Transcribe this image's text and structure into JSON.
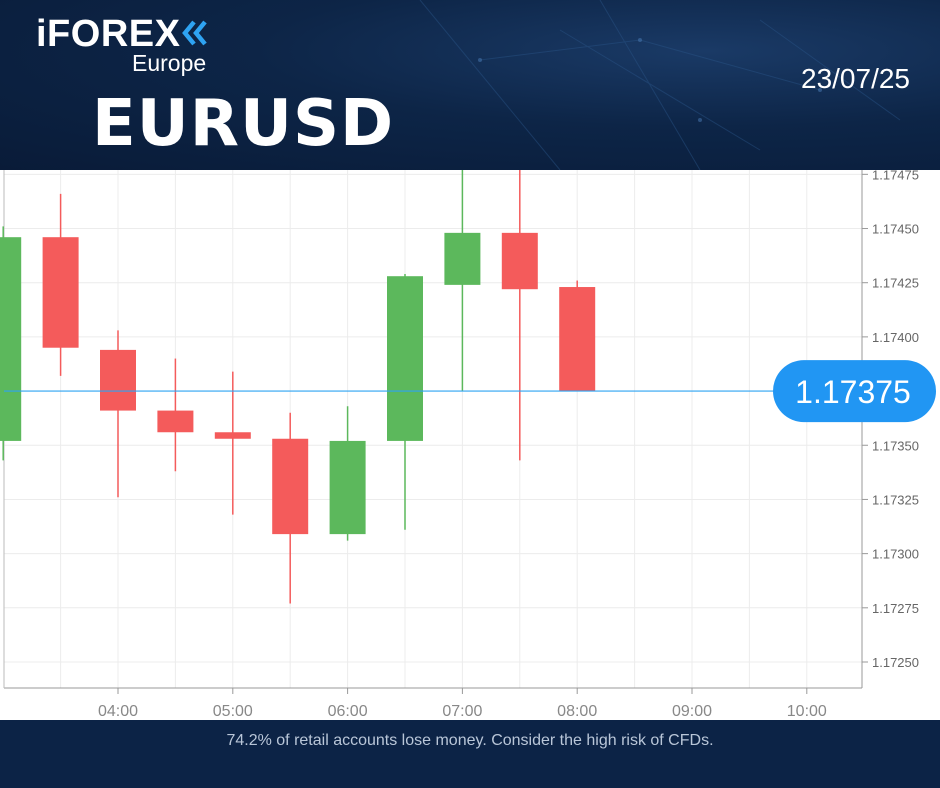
{
  "brand": {
    "name": "iFOREX",
    "region": "Europe",
    "icon": "double-chevron-left-icon",
    "accent_color": "#2ea3f2"
  },
  "symbol": "EURUSD",
  "date": "23/07/25",
  "colors": {
    "header_bg": "#0d2547",
    "up": "#5cb85c",
    "down": "#f45b5b",
    "price_line": "#2ea3f2",
    "price_badge": "#2196f3"
  },
  "chart_data": {
    "type": "candlestick",
    "x_labels": [
      "04:00",
      "05:00",
      "06:00",
      "07:00",
      "08:00",
      "09:00",
      "10:00"
    ],
    "y_ticks": [
      "1.17250",
      "1.17275",
      "1.17300",
      "1.17325",
      "1.17350",
      "1.17400",
      "1.17425",
      "1.17450",
      "1.17475"
    ],
    "ylim": [
      1.17238,
      1.17477
    ],
    "grid": true,
    "current_price": 1.17375,
    "current_price_label": "1.17375",
    "candles": [
      {
        "time": "03:00",
        "open": 1.17352,
        "high": 1.17451,
        "low": 1.17343,
        "close": 1.17446
      },
      {
        "time": "03:30",
        "open": 1.17446,
        "high": 1.17466,
        "low": 1.17382,
        "close": 1.17395
      },
      {
        "time": "04:00",
        "open": 1.17394,
        "high": 1.17403,
        "low": 1.17326,
        "close": 1.17366
      },
      {
        "time": "04:30",
        "open": 1.17366,
        "high": 1.1739,
        "low": 1.17338,
        "close": 1.17356
      },
      {
        "time": "05:00",
        "open": 1.17356,
        "high": 1.17384,
        "low": 1.17318,
        "close": 1.17353
      },
      {
        "time": "05:30",
        "open": 1.17353,
        "high": 1.17365,
        "low": 1.17277,
        "close": 1.17309
      },
      {
        "time": "06:00",
        "open": 1.17309,
        "high": 1.17368,
        "low": 1.17306,
        "close": 1.17352
      },
      {
        "time": "06:30",
        "open": 1.17352,
        "high": 1.17429,
        "low": 1.17311,
        "close": 1.17428
      },
      {
        "time": "07:00",
        "open": 1.17424,
        "high": 1.17477,
        "low": 1.17375,
        "close": 1.17448
      },
      {
        "time": "07:30",
        "open": 1.17448,
        "high": 1.17477,
        "low": 1.17343,
        "close": 1.17422
      },
      {
        "time": "08:00",
        "open": 1.17423,
        "high": 1.17426,
        "low": 1.17375,
        "close": 1.17375
      }
    ]
  },
  "disclaimer": "74.2% of retail accounts lose money. Consider the high risk of CFDs."
}
